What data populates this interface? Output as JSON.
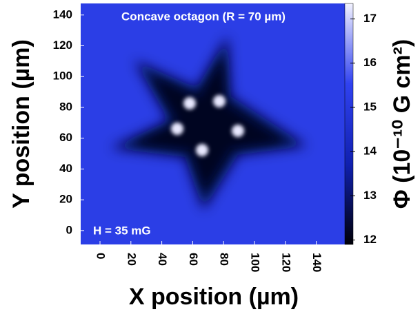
{
  "chart_data": {
    "type": "heatmap",
    "title": "Concave octagon (R = 70 µm)",
    "annotation": "H = 35 mG",
    "xlabel": "X position (µm)",
    "ylabel": "Y position (µm)",
    "colorbar_label": "Φ (10⁻¹⁰ G cm²)",
    "xlim": [
      -12.5,
      158.5
    ],
    "xticks": [
      0,
      20,
      40,
      60,
      80,
      100,
      120,
      140
    ],
    "ylim": [
      -9,
      147.5
    ],
    "yticks": [
      0,
      20,
      40,
      60,
      80,
      100,
      120,
      140
    ],
    "clim": [
      11.9,
      17.35
    ],
    "cticks": [
      12,
      13,
      14,
      15,
      16,
      17
    ],
    "colormap": [
      "#000008",
      "#1020b0",
      "#3042f0",
      "#f2f2ff"
    ]
  }
}
